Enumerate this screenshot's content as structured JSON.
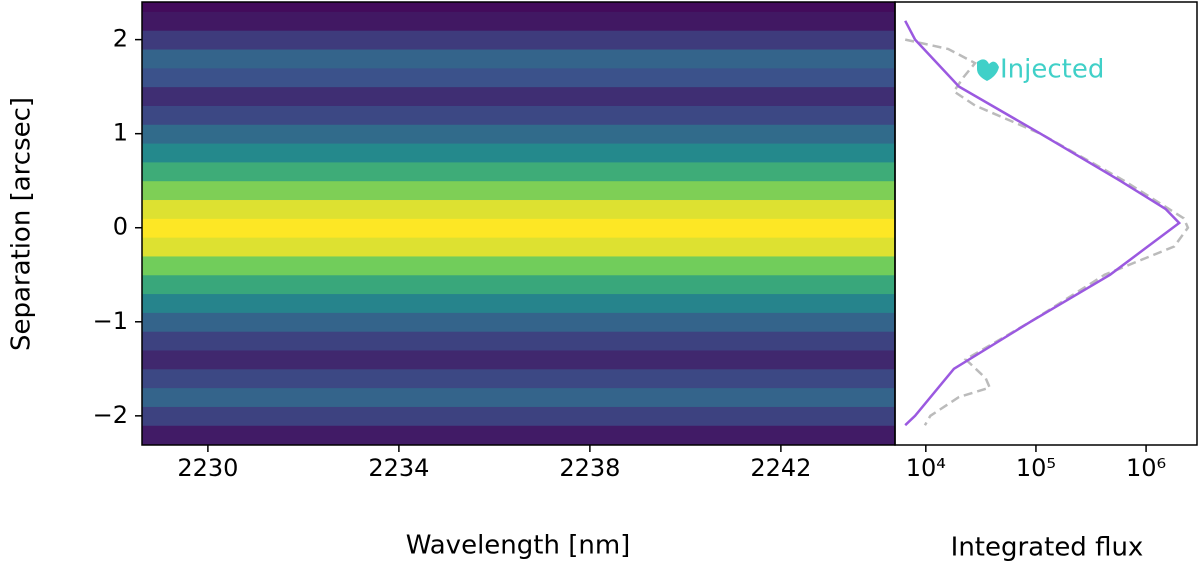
{
  "chart_data": [
    {
      "type": "heatmap",
      "xlabel": "Wavelength [nm]",
      "ylabel": "Separation [arcsec]",
      "xlim": [
        2228.62,
        2244.39
      ],
      "ylim": [
        -2.31,
        2.4
      ],
      "xticks": [
        2230,
        2234,
        2238,
        2242
      ],
      "yticks": [
        {
          "value": -2,
          "label": "−2"
        },
        {
          "value": -1,
          "label": "−1"
        },
        0,
        1,
        2
      ],
      "y_bins": [
        -2.3,
        -2.1,
        -1.9,
        -1.7,
        -1.5,
        -1.3,
        -1.1,
        -0.9,
        -0.7,
        -0.5,
        -0.3,
        -0.1,
        0.1,
        0.3,
        0.5,
        0.7,
        0.9,
        1.1,
        1.3,
        1.5,
        1.7,
        1.9,
        2.1,
        2.3,
        2.4
      ],
      "values": [
        0.08,
        0.2,
        0.32,
        0.22,
        0.12,
        0.2,
        0.32,
        0.45,
        0.6,
        0.78,
        0.95,
        1.0,
        0.95,
        0.8,
        0.62,
        0.47,
        0.35,
        0.22,
        0.14,
        0.25,
        0.32,
        0.18,
        0.07,
        0.03
      ],
      "colormap": [
        "#440154",
        "#3b528b",
        "#21918c",
        "#5ec962",
        "#fde725"
      ]
    },
    {
      "type": "line",
      "xlabel": "Integrated flux",
      "xlog": true,
      "xlim": [
        5250,
        2900000
      ],
      "ylim": [
        -2.31,
        2.4
      ],
      "xticks": [
        {
          "value": 10000,
          "label": "10⁴"
        },
        {
          "value": 100000,
          "label": "10⁵"
        },
        {
          "value": 1000000,
          "label": "10⁶"
        }
      ],
      "annotation": {
        "text": "Injected",
        "color": "#40d0c8"
      },
      "series": [
        {
          "color": "#bbbbbb",
          "dashed": true,
          "y": [
            2.0,
            1.9,
            1.75,
            1.6,
            1.45,
            1.3,
            1.0,
            0.5,
            0.1,
            0.0,
            -0.2,
            -0.5,
            -1.0,
            -1.4,
            -1.6,
            -1.7,
            -1.8,
            -2.0,
            -2.1
          ],
          "values": [
            6500,
            16000,
            28000,
            22000,
            18000,
            28000,
            110000,
            630000,
            2200000,
            2400000,
            1800000,
            420000,
            89000,
            23000,
            35000,
            38000,
            20000,
            11000,
            9800
          ]
        },
        {
          "color": "#9b59e0",
          "dashed": false,
          "y": [
            2.2,
            2.0,
            1.5,
            1.0,
            0.5,
            0.2,
            0.05,
            -0.5,
            -1.0,
            -1.5,
            -2.0,
            -2.1
          ],
          "values": [
            6500,
            8000,
            20000,
            110000,
            580000,
            1500000,
            2000000,
            470000,
            89000,
            18000,
            8000,
            6500
          ]
        }
      ]
    }
  ]
}
